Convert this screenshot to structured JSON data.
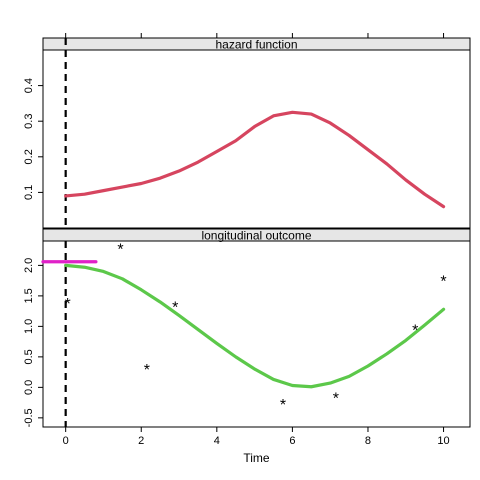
{
  "chart_data": {
    "type": "line",
    "xlabel": "Time",
    "xlim": [
      -0.6,
      10.7
    ],
    "x_ticks": [
      0,
      2,
      4,
      6,
      8,
      10
    ],
    "x_tick_labels": [
      "0",
      "2",
      "4",
      "6",
      "8",
      "10"
    ],
    "vline_x": 0,
    "panels": [
      {
        "title": "hazard function",
        "ylim": [
          0.0,
          0.5
        ],
        "y_ticks": [
          0.1,
          0.2,
          0.3,
          0.4
        ],
        "y_tick_labels": [
          "0.1",
          "0.2",
          "0.3",
          "0.4"
        ],
        "series": [
          {
            "name": "hazard",
            "color": "#d6455f",
            "x": [
              0,
              0.5,
              1,
              1.5,
              2,
              2.5,
              3,
              3.5,
              4,
              4.5,
              5,
              5.5,
              6,
              6.5,
              7,
              7.5,
              8,
              8.5,
              9,
              9.5,
              10
            ],
            "y": [
              0.09,
              0.095,
              0.105,
              0.115,
              0.125,
              0.14,
              0.16,
              0.185,
              0.215,
              0.245,
              0.285,
              0.315,
              0.325,
              0.32,
              0.295,
              0.26,
              0.22,
              0.18,
              0.135,
              0.095,
              0.06
            ]
          }
        ]
      },
      {
        "title": "longitudinal outcome",
        "ylim": [
          -0.65,
          2.4
        ],
        "y_ticks": [
          -0.5,
          0.0,
          0.5,
          1.0,
          1.5,
          2.0
        ],
        "y_tick_labels": [
          "-0.5",
          "0.0",
          "0.5",
          "1.0",
          "1.5",
          "2.0"
        ],
        "series": [
          {
            "name": "fitted trajectory",
            "color": "#5cc84a",
            "x": [
              0,
              0.5,
              1,
              1.5,
              2,
              2.5,
              3,
              3.5,
              4,
              4.5,
              5,
              5.5,
              6,
              6.5,
              7,
              7.5,
              8,
              8.5,
              9,
              9.5,
              10
            ],
            "y": [
              2.0,
              1.97,
              1.9,
              1.78,
              1.6,
              1.4,
              1.18,
              0.95,
              0.72,
              0.5,
              0.3,
              0.13,
              0.03,
              0.01,
              0.07,
              0.18,
              0.35,
              0.55,
              0.77,
              1.02,
              1.28
            ]
          },
          {
            "name": "baseline segment",
            "color": "#e020c8",
            "x": [
              -0.6,
              0.8
            ],
            "y": [
              2.06,
              2.06
            ]
          }
        ],
        "observations": {
          "marker": "*",
          "x": [
            0.05,
            1.45,
            2.15,
            2.9,
            5.75,
            7.15,
            9.25,
            10.0
          ],
          "y": [
            1.38,
            2.28,
            0.3,
            1.33,
            -0.27,
            -0.17,
            0.95,
            1.75
          ]
        }
      }
    ]
  }
}
